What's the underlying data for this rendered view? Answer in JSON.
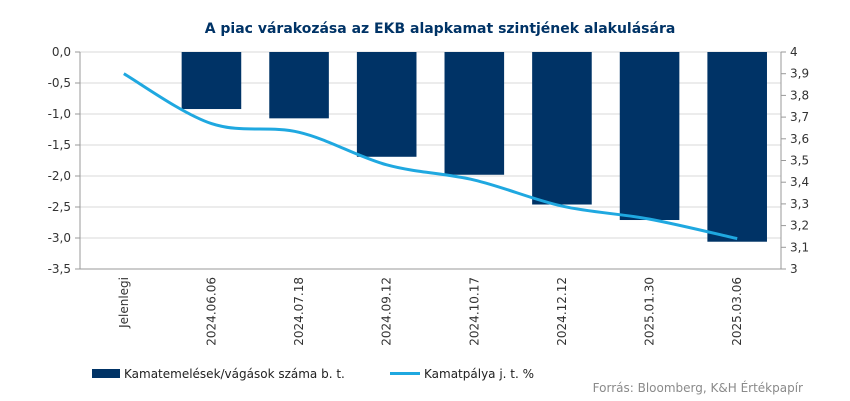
{
  "chart_data": {
    "type": "bar",
    "title": "A piac várakozása az EKB alapkamat szintjének alakulására",
    "categories": [
      "Jelenlegi",
      "2024.06.06",
      "2024.07.18",
      "2024.09.12",
      "2024.10.17",
      "2024.12.12",
      "2025.01.30",
      "2025.03.06"
    ],
    "series": [
      {
        "name": "Kamatemelések/vágások száma b. t.",
        "type": "bar",
        "axis": "left",
        "color": "#003366",
        "values": [
          0,
          -0.92,
          -1.07,
          -1.69,
          -1.98,
          -2.46,
          -2.71,
          -3.06
        ]
      },
      {
        "name": "Kamatpálya j. t. %",
        "type": "line",
        "axis": "right",
        "color": "#1fa8e0",
        "values": [
          3.9,
          3.67,
          3.63,
          3.48,
          3.41,
          3.29,
          3.23,
          3.14
        ]
      }
    ],
    "y_left": {
      "min": -3.5,
      "max": 0,
      "ticks": [
        "0,0",
        "-0,5",
        "-1,0",
        "-1,5",
        "-2,0",
        "-2,5",
        "-3,0",
        "-3,5"
      ]
    },
    "y_right": {
      "min": 3,
      "max": 4,
      "ticks": [
        "4",
        "3,9",
        "3,8",
        "3,7",
        "3,6",
        "3,5",
        "3,4",
        "3,3",
        "3,2",
        "3,1",
        "3"
      ]
    },
    "grid": true,
    "legend": "bottom-left"
  },
  "source": "Forrás: Bloomberg, K&H Értékpapír"
}
